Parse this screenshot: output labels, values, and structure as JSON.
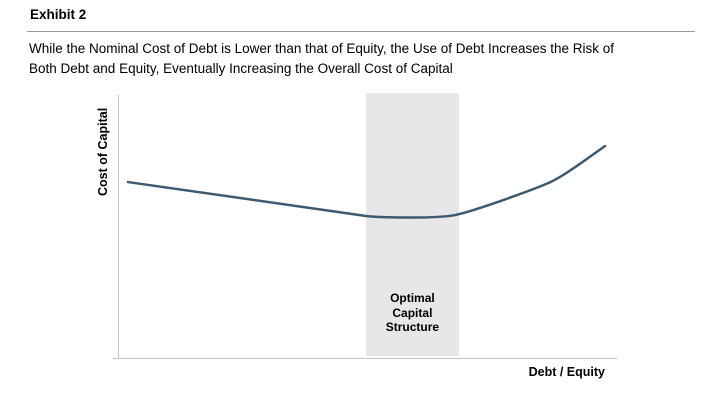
{
  "header": {
    "exhibit_label": "Exhibit 2",
    "subtitle_line1": "While the Nominal Cost of Debt is Lower than that of Equity, the Use of Debt Increases the Risk of",
    "subtitle_line2": "Both Debt and Equity, Eventually Increasing the Overall Cost of Capital"
  },
  "chart_data": {
    "type": "line",
    "title": "Exhibit 2",
    "subtitle": "While the Nominal Cost of Debt is Lower than that of Equity, the Use of Debt Increases the Risk of Both Debt and Equity, Eventually Increasing the Overall Cost of Capital",
    "xlabel": "Debt / Equity",
    "ylabel": "Cost of Capital",
    "x_axis": {
      "range_norm": [
        0,
        1
      ],
      "ticks": [],
      "grid": false
    },
    "y_axis": {
      "range_norm": [
        0,
        1
      ],
      "ticks": [],
      "grid": false
    },
    "legend": "none",
    "series": [
      {
        "name": "Overall Cost of Capital",
        "shape": "declines to a flat minimum inside the optimal band, then rises with increasing steepness",
        "points_norm": [
          [
            0.02,
            0.669
          ],
          [
            0.469,
            0.546
          ],
          [
            0.525,
            0.534
          ],
          [
            0.649,
            0.534
          ],
          [
            0.701,
            0.553
          ],
          [
            0.846,
            0.65
          ],
          [
            0.89,
            0.69
          ],
          [
            0.976,
            0.806
          ]
        ]
      }
    ],
    "annotations": {
      "optimal_band": {
        "label": "Optimal Capital Structure",
        "x_from_norm": 0.497,
        "x_to_norm": 0.683
      }
    },
    "colors": {
      "line": "#3c5a70",
      "band": "#e7e7e9",
      "axis": "#c2c2c2",
      "divider": "#9a9a9a",
      "text": "#000000"
    }
  }
}
